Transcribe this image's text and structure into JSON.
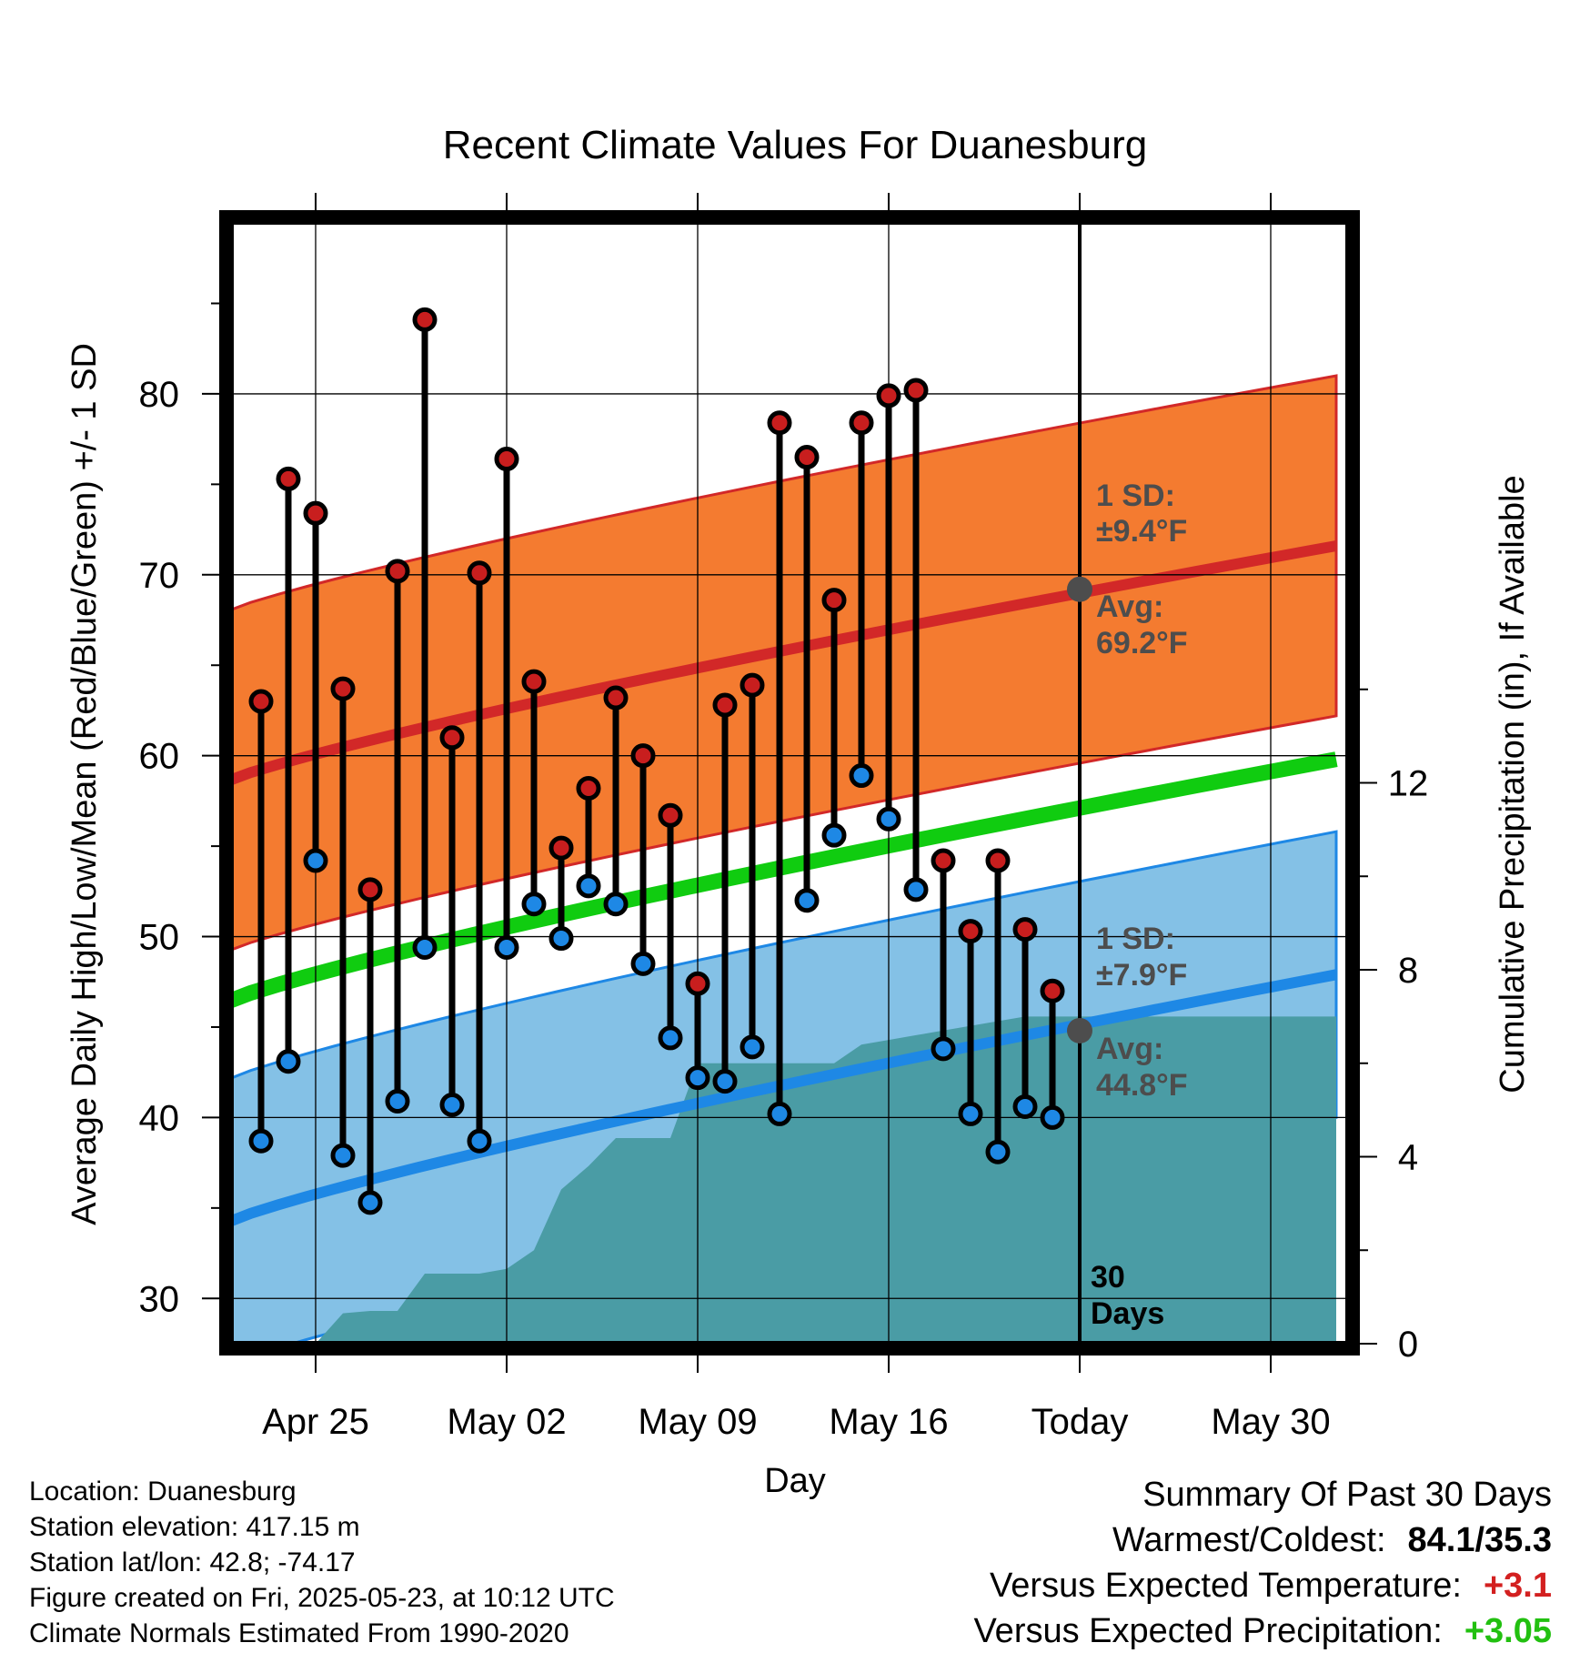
{
  "chart_data": {
    "type": "line",
    "title": "Recent Climate Values For Duanesburg",
    "xlabel": "Day",
    "ylabel": "Average Daily High/Low/Mean (Red/Blue/Green) +/- 1 SD",
    "y2label": "Cumulative Precipitation (in), If Available",
    "x_tick_labels": [
      "Apr 25",
      "May 02",
      "May 09",
      "May 16",
      "Today",
      "May 30"
    ],
    "y_ticks": [
      30,
      40,
      50,
      60,
      70,
      80
    ],
    "y2_ticks": [
      0,
      4,
      8,
      12
    ],
    "ylim": [
      27.5,
      89.5
    ],
    "y2lim": [
      0,
      24.0
    ],
    "grid": true,
    "days": [
      "Apr 23",
      "Apr 24",
      "Apr 25",
      "Apr 26",
      "Apr 27",
      "Apr 28",
      "Apr 29",
      "Apr 30",
      "May 01",
      "May 02",
      "May 03",
      "May 04",
      "May 05",
      "May 06",
      "May 07",
      "May 08",
      "May 09",
      "May 10",
      "May 11",
      "May 12",
      "May 13",
      "May 14",
      "May 15",
      "May 16",
      "May 17",
      "May 18",
      "May 19",
      "May 20",
      "May 21",
      "May 22"
    ],
    "series": [
      {
        "name": "High",
        "color": "#c81e1e",
        "values": [
          63.0,
          75.3,
          73.4,
          63.7,
          52.6,
          70.2,
          84.1,
          61.0,
          70.1,
          76.4,
          64.1,
          54.9,
          58.2,
          63.2,
          60.0,
          56.7,
          47.4,
          62.8,
          63.9,
          78.4,
          76.5,
          68.6,
          78.4,
          79.9,
          80.2,
          54.2,
          50.3,
          54.2,
          50.4,
          47.0
        ]
      },
      {
        "name": "Low",
        "color": "#1e88e5",
        "values": [
          38.7,
          43.1,
          54.2,
          37.9,
          35.3,
          40.9,
          49.4,
          40.7,
          38.7,
          49.4,
          51.8,
          49.9,
          52.8,
          51.8,
          48.5,
          44.4,
          42.2,
          42.0,
          43.9,
          40.2,
          52.0,
          55.6,
          58.9,
          56.5,
          52.6,
          43.8,
          40.2,
          38.1,
          40.6,
          40.0
        ]
      }
    ],
    "normals": {
      "x_range": [
        "Apr 22",
        "Jun 01"
      ],
      "high_avg": [
        58.5,
        71.6
      ],
      "high_sd": 9.4,
      "mean_avg": [
        46.3,
        59.8
      ],
      "low_avg": [
        34.1,
        47.9
      ],
      "low_sd": 7.9
    },
    "precipitation": {
      "days": [
        "Apr 22",
        "Apr 23",
        "Apr 24",
        "Apr 25",
        "Apr 26",
        "Apr 27",
        "Apr 28",
        "Apr 29",
        "Apr 30",
        "May 01",
        "May 02",
        "May 03",
        "May 04",
        "May 05",
        "May 06",
        "May 07",
        "May 08",
        "May 09",
        "May 10",
        "May 11",
        "May 12",
        "May 13",
        "May 14",
        "May 15",
        "May 16",
        "May 17",
        "May 18",
        "May 19",
        "May 20",
        "May 21",
        "May 22",
        "Jun 01"
      ],
      "values": [
        0,
        0,
        0,
        0.0,
        0.65,
        0.7,
        0.7,
        1.5,
        1.5,
        1.5,
        1.6,
        2.0,
        3.3,
        3.8,
        4.4,
        4.4,
        4.4,
        6.0,
        6.0,
        6.0,
        6.0,
        6.0,
        6.0,
        6.4,
        6.5,
        6.6,
        6.7,
        6.8,
        6.9,
        7.0,
        7.0,
        7.0
      ]
    },
    "annotations": {
      "high_sd_label": "1 SD:",
      "high_sd_value": "±9.4°F",
      "high_avg_label": "Avg:",
      "high_avg_value": "69.2°F",
      "low_sd_label": "1 SD:",
      "low_sd_value": "±7.9°F",
      "low_avg_label": "Avg:",
      "low_avg_value": "44.8°F",
      "today_high_avg": 69.2,
      "today_low_avg": 44.8,
      "period_line1": "30",
      "period_line2": "Days"
    }
  },
  "station_info": [
    "Location: Duanesburg",
    "Station elevation: 417.15 m",
    "Station lat/lon: 42.8; -74.17",
    "Figure created on Fri, 2025-05-23, at 10:12 UTC",
    "Climate Normals Estimated From 1990-2020"
  ],
  "summary": {
    "heading": "Summary Of Past 30 Days",
    "warmest_coldest_label": "Warmest/Coldest:",
    "warmest_coldest_value": "84.1/35.3",
    "temp_label": "Versus Expected Temperature:",
    "temp_value": "+3.1",
    "precip_label": "Versus Expected Precipitation:",
    "precip_value": "+3.05"
  },
  "colors": {
    "high_band": "#f47b30",
    "high_line": "#d22828",
    "low_band": "#84c1e6",
    "low_line": "#1e88e5",
    "mean_line": "#10cc10",
    "precip": "#4a9ca5",
    "high_dot": "#c81e1e",
    "low_dot": "#1e88e5"
  }
}
